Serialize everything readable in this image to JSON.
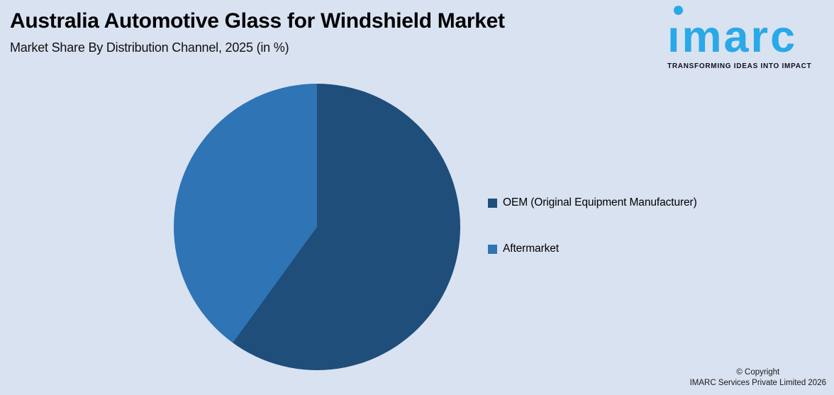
{
  "header": {
    "title": "Australia Automotive Glass for Windshield Market",
    "subtitle": "Market Share By Distribution Channel, 2025 (in %)"
  },
  "logo": {
    "wordmark": "imarc",
    "tagline": "TRANSFORMING IDEAS INTO IMPACT",
    "brand_color": "#29A9E8"
  },
  "chart_data": {
    "type": "pie",
    "title": "Australia Automotive Glass for Windshield Market",
    "subtitle": "Market Share By Distribution Channel, 2025 (in %)",
    "categories": [
      "OEM (Original Equipment Manufacturer)",
      "Aftermarket"
    ],
    "values": [
      60,
      40
    ],
    "colors": [
      "#1F4E7B",
      "#2F74B5"
    ],
    "start_angle_deg": 0,
    "direction": "clockwise",
    "data_labels_shown": false,
    "legend_position": "right"
  },
  "legend": {
    "items": [
      {
        "label": "OEM (Original Equipment Manufacturer)",
        "color": "#1F4E7B"
      },
      {
        "label": "Aftermarket",
        "color": "#2F74B5"
      }
    ]
  },
  "footer": {
    "line1": "© Copyright",
    "line2": "IMARC Services Private Limited 2026"
  },
  "colors": {
    "background": "#D9E2F1",
    "title_text": "#000000"
  }
}
